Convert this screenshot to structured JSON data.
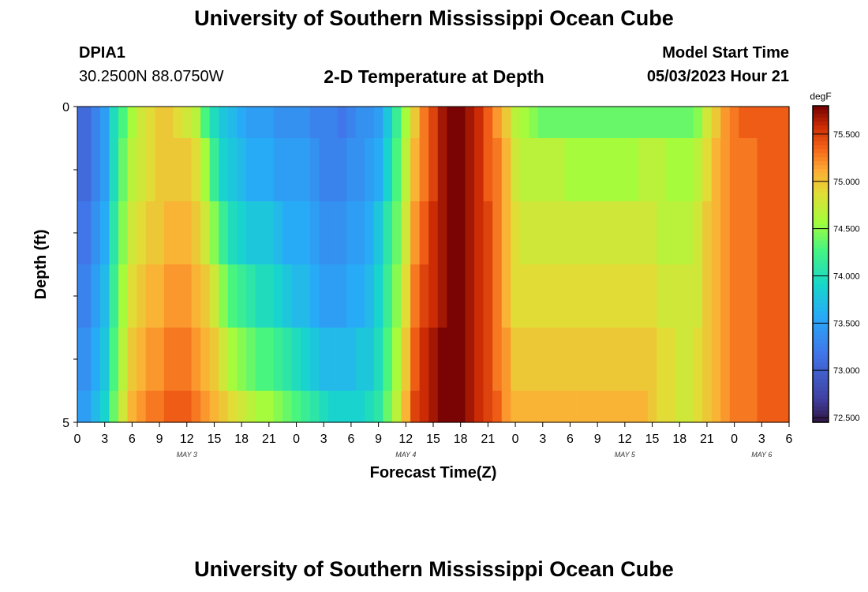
{
  "header": {
    "title": "University of Southern Mississippi Ocean Cube",
    "station": "DPIA1",
    "coords": "30.2500N  88.0750W",
    "subtitle": "2-D Temperature at Depth",
    "model_start_label": "Model Start Time",
    "model_start_value": "05/03/2023 Hour 21",
    "footer_title": "University of Southern Mississippi Ocean Cube"
  },
  "chart_data": {
    "type": "heatmap",
    "xlabel": "Forecast Time(Z)",
    "ylabel": "Depth (ft)",
    "x_hours": [
      0,
      1,
      2,
      3,
      4,
      5,
      6,
      7,
      8,
      9,
      10,
      11,
      12,
      13,
      14,
      15,
      16,
      17,
      18,
      19,
      20,
      21,
      22,
      23,
      24,
      25,
      26,
      27,
      28,
      29,
      30,
      31,
      32,
      33,
      34,
      35,
      36,
      37,
      38,
      39,
      40,
      41,
      42,
      43,
      44,
      45,
      46,
      47,
      48,
      49,
      50,
      51,
      52,
      53,
      54,
      55,
      56,
      57,
      58,
      59,
      60,
      61,
      62,
      63,
      64,
      65,
      66,
      67,
      68,
      69,
      70,
      71,
      72,
      73,
      74,
      75,
      76,
      77,
      78
    ],
    "x_tick_labels": [
      "0",
      "3",
      "6",
      "9",
      "12",
      "15",
      "18",
      "21",
      "0",
      "3",
      "6",
      "9",
      "12",
      "15",
      "18",
      "21",
      "0",
      "3",
      "6",
      "9",
      "12",
      "15",
      "18",
      "21",
      "0",
      "3",
      "6"
    ],
    "day_labels": [
      {
        "label": "MAY 3",
        "hour": 12
      },
      {
        "label": "MAY 4",
        "hour": 36
      },
      {
        "label": "MAY 5",
        "hour": 60
      },
      {
        "label": "MAY 6",
        "hour": 75
      }
    ],
    "y_tick_labels": [
      "0",
      "5"
    ],
    "ylim": [
      0,
      5
    ],
    "depth_layers": [
      0.25,
      1.0,
      2.0,
      3.0,
      4.0,
      4.75
    ],
    "temperature_degF": [
      [
        73.1,
        73.1,
        73.3,
        73.5,
        74.0,
        74.3,
        74.6,
        74.8,
        74.9,
        75.0,
        75.0,
        74.9,
        74.8,
        74.7,
        74.3,
        74.0,
        73.8,
        73.7,
        73.6,
        73.5,
        73.5,
        73.5,
        73.4,
        73.4,
        73.4,
        73.4,
        73.3,
        73.3,
        73.3,
        73.2,
        73.3,
        73.4,
        73.4,
        73.5,
        73.8,
        74.2,
        74.6,
        75.0,
        75.3,
        75.5,
        75.7,
        75.8,
        75.8,
        75.7,
        75.6,
        75.4,
        75.2,
        75.0,
        74.7,
        74.6,
        74.5,
        74.4,
        74.4,
        74.4,
        74.4,
        74.4,
        74.4,
        74.4,
        74.4,
        74.4,
        74.4,
        74.4,
        74.4,
        74.4,
        74.4,
        74.4,
        74.4,
        74.4,
        74.5,
        74.8,
        75.0,
        75.2,
        75.3,
        75.4,
        75.4,
        75.4,
        75.4,
        75.4,
        75.4
      ],
      [
        73.1,
        73.1,
        73.3,
        73.5,
        74.0,
        74.4,
        74.7,
        74.8,
        74.9,
        75.0,
        75.0,
        75.0,
        75.0,
        74.9,
        74.6,
        74.2,
        73.9,
        73.8,
        73.7,
        73.6,
        73.6,
        73.6,
        73.5,
        73.5,
        73.5,
        73.5,
        73.4,
        73.3,
        73.3,
        73.3,
        73.4,
        73.4,
        73.5,
        73.6,
        73.9,
        74.3,
        74.7,
        75.1,
        75.3,
        75.5,
        75.7,
        75.8,
        75.8,
        75.7,
        75.6,
        75.4,
        75.3,
        75.1,
        74.8,
        74.7,
        74.7,
        74.7,
        74.7,
        74.7,
        74.6,
        74.6,
        74.6,
        74.6,
        74.6,
        74.6,
        74.6,
        74.6,
        74.7,
        74.7,
        74.7,
        74.6,
        74.6,
        74.6,
        74.7,
        74.9,
        75.1,
        75.2,
        75.3,
        75.3,
        75.3,
        75.4,
        75.4,
        75.4,
        75.4
      ],
      [
        73.2,
        73.2,
        73.4,
        73.6,
        74.1,
        74.5,
        74.8,
        74.9,
        75.0,
        75.0,
        75.1,
        75.1,
        75.1,
        75.0,
        74.8,
        74.5,
        74.2,
        74.0,
        73.9,
        73.8,
        73.8,
        73.8,
        73.7,
        73.6,
        73.6,
        73.6,
        73.5,
        73.4,
        73.4,
        73.4,
        73.5,
        73.5,
        73.6,
        73.8,
        74.1,
        74.4,
        74.8,
        75.2,
        75.4,
        75.6,
        75.7,
        75.8,
        75.8,
        75.7,
        75.6,
        75.5,
        75.3,
        75.1,
        74.9,
        74.8,
        74.8,
        74.8,
        74.8,
        74.8,
        74.8,
        74.8,
        74.8,
        74.8,
        74.8,
        74.8,
        74.8,
        74.8,
        74.8,
        74.8,
        74.7,
        74.7,
        74.7,
        74.7,
        74.8,
        75.0,
        75.1,
        75.2,
        75.3,
        75.3,
        75.3,
        75.4,
        75.4,
        75.4,
        75.4
      ],
      [
        73.3,
        73.3,
        73.5,
        73.7,
        74.2,
        74.6,
        74.9,
        75.0,
        75.1,
        75.1,
        75.2,
        75.2,
        75.2,
        75.1,
        75.0,
        74.8,
        74.5,
        74.3,
        74.2,
        74.1,
        74.0,
        74.0,
        73.9,
        73.8,
        73.7,
        73.7,
        73.6,
        73.5,
        73.5,
        73.5,
        73.6,
        73.6,
        73.7,
        73.9,
        74.2,
        74.5,
        74.9,
        75.3,
        75.5,
        75.6,
        75.7,
        75.8,
        75.8,
        75.7,
        75.6,
        75.5,
        75.3,
        75.1,
        74.9,
        74.9,
        74.9,
        74.9,
        74.9,
        74.9,
        74.9,
        74.9,
        74.9,
        74.9,
        74.9,
        74.9,
        74.9,
        74.9,
        74.9,
        74.9,
        74.8,
        74.8,
        74.8,
        74.8,
        74.8,
        75.0,
        75.1,
        75.2,
        75.3,
        75.3,
        75.3,
        75.4,
        75.4,
        75.4,
        75.4
      ],
      [
        73.4,
        73.4,
        73.6,
        73.8,
        74.3,
        74.7,
        75.0,
        75.1,
        75.2,
        75.2,
        75.3,
        75.3,
        75.3,
        75.2,
        75.1,
        75.0,
        74.8,
        74.6,
        74.5,
        74.4,
        74.3,
        74.3,
        74.2,
        74.1,
        74.0,
        73.9,
        73.8,
        73.7,
        73.7,
        73.7,
        73.7,
        73.8,
        73.8,
        74.0,
        74.3,
        74.6,
        75.0,
        75.4,
        75.6,
        75.7,
        75.8,
        75.8,
        75.8,
        75.7,
        75.6,
        75.5,
        75.3,
        75.2,
        75.0,
        75.0,
        75.0,
        75.0,
        75.0,
        75.0,
        75.0,
        75.0,
        75.0,
        75.0,
        75.0,
        75.0,
        75.0,
        75.0,
        75.0,
        75.0,
        74.9,
        74.9,
        74.8,
        74.8,
        74.9,
        75.0,
        75.1,
        75.2,
        75.3,
        75.3,
        75.3,
        75.4,
        75.4,
        75.4,
        75.4
      ],
      [
        73.5,
        73.5,
        73.7,
        73.9,
        74.4,
        74.8,
        75.1,
        75.2,
        75.3,
        75.3,
        75.4,
        75.4,
        75.4,
        75.3,
        75.2,
        75.1,
        75.0,
        74.9,
        74.8,
        74.7,
        74.6,
        74.6,
        74.5,
        74.4,
        74.3,
        74.2,
        74.1,
        74.0,
        73.9,
        73.9,
        73.9,
        73.9,
        74.0,
        74.1,
        74.4,
        74.7,
        75.1,
        75.5,
        75.6,
        75.7,
        75.8,
        75.8,
        75.8,
        75.7,
        75.6,
        75.5,
        75.4,
        75.2,
        75.1,
        75.1,
        75.1,
        75.1,
        75.1,
        75.1,
        75.1,
        75.1,
        75.1,
        75.1,
        75.1,
        75.1,
        75.1,
        75.1,
        75.1,
        75.0,
        74.9,
        74.9,
        74.8,
        74.8,
        74.9,
        75.0,
        75.1,
        75.2,
        75.3,
        75.3,
        75.3,
        75.4,
        75.4,
        75.4,
        75.4
      ]
    ],
    "colorbar": {
      "unit": "degF",
      "range": [
        72.45,
        75.8
      ],
      "tick_values": [
        72.5,
        73.0,
        73.5,
        74.0,
        74.5,
        75.0,
        75.5
      ],
      "tick_labels": [
        "72.500",
        "73.000",
        "73.500",
        "74.000",
        "74.500",
        "75.000",
        "75.500"
      ]
    }
  }
}
